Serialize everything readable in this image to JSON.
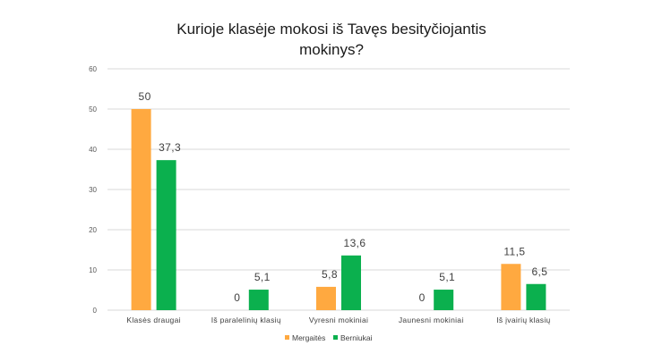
{
  "chart_data": {
    "type": "bar",
    "title_lines": [
      "Kurioje klasėje mokosi iš Tavęs besityčiojantis",
      "mokinys?"
    ],
    "categories": [
      "Klasės draugai",
      "Iš paralelinių klasių",
      "Vyresni mokiniai",
      "Jaunesni mokiniai",
      "Iš įvairių klasių"
    ],
    "series": [
      {
        "name": "Mergaitės",
        "color": "#ffa940",
        "values": [
          50,
          0,
          5.8,
          0,
          11.5
        ],
        "labels": [
          "50",
          "0",
          "5,8",
          "0",
          "11,5"
        ]
      },
      {
        "name": "Berniukai",
        "color": "#0bb04e",
        "values": [
          37.3,
          5.1,
          13.6,
          5.1,
          6.5
        ],
        "labels": [
          "37,3",
          "5,1",
          "13,6",
          "5,1",
          "6,5"
        ]
      }
    ],
    "ylim": [
      0,
      60
    ],
    "yticks": [
      0,
      10,
      20,
      30,
      40,
      50,
      60
    ],
    "grid": true,
    "legend_position": "bottom"
  }
}
